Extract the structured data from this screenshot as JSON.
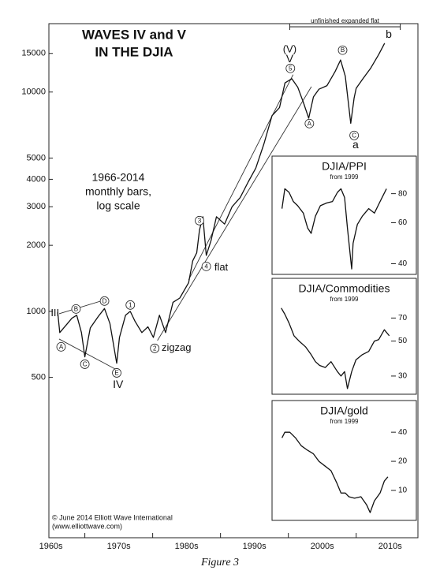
{
  "chart_data": [
    {
      "type": "line",
      "log_y": true,
      "title_lines": [
        "WAVES IV and V",
        "IN THE DJIA"
      ],
      "subtitle_lines": [
        "1966-2014",
        "monthly bars,",
        "log scale"
      ],
      "credit_lines": [
        "© June 2014 Elliott Wave International",
        "(www.elliottwave.com)"
      ],
      "color": "#111111",
      "xlim": [
        1964.7,
        2019.1
      ],
      "ylim": [
        100,
        20000
      ],
      "xticks": [
        1970,
        1980,
        1990,
        2000,
        2010
      ],
      "xtick_labels": [
        {
          "value": 1965,
          "label": "1960s"
        },
        {
          "value": 1975,
          "label": "1970s"
        },
        {
          "value": 1985,
          "label": "1980s"
        },
        {
          "value": 1995,
          "label": "1990s"
        },
        {
          "value": 2005,
          "label": "2000s"
        },
        {
          "value": 2015,
          "label": "2010s"
        }
      ],
      "yticks": [
        500,
        1000,
        2000,
        3000,
        4000,
        5000,
        10000,
        15000
      ],
      "x": [
        1966.0,
        1966.3,
        1967.3,
        1968.1,
        1968.8,
        1969.5,
        1970.0,
        1970.8,
        1972.0,
        1972.9,
        1973.7,
        1974.7,
        1975.1,
        1976.0,
        1976.7,
        1977.4,
        1978.4,
        1979.3,
        1980.1,
        1981.0,
        1981.9,
        1983.0,
        1984.0,
        1985.3,
        1985.9,
        1986.5,
        1986.9,
        1987.4,
        1987.9,
        1988.6,
        1989.4,
        1990.6,
        1991.7,
        1992.9,
        1994.1,
        1995.2,
        1996.4,
        1997.6,
        1998.7,
        1999.5,
        2000.5,
        2001.4,
        2002.2,
        2003.0,
        2003.7,
        2004.5,
        2005.7,
        2006.9,
        2007.7,
        2008.4,
        2009.2,
        2009.7,
        2010.0,
        2010.9,
        2012.1,
        2013.3,
        2014.2
      ],
      "values": [
        990,
        800,
        870,
        930,
        960,
        800,
        620,
        840,
        950,
        1030,
        880,
        580,
        760,
        960,
        1000,
        900,
        800,
        850,
        760,
        960,
        800,
        1100,
        1150,
        1350,
        1700,
        1850,
        2350,
        2700,
        1800,
        2100,
        2700,
        2500,
        3000,
        3300,
        3900,
        4500,
        5800,
        7800,
        8500,
        11000,
        11500,
        10500,
        9000,
        7600,
        9500,
        10300,
        10700,
        12400,
        14000,
        11800,
        7200,
        9400,
        10400,
        11400,
        12800,
        14800,
        16700
      ],
      "trendlines": [
        {
          "x": [
            1985.3,
            2000.7
          ],
          "y": [
            1392,
            12000
          ]
        },
        {
          "x": [
            1980.7,
            2003.4
          ],
          "y": [
            736,
            10580
          ]
        },
        {
          "x": [
            1966.2,
            1973.1
          ],
          "y": [
            975,
            1132
          ]
        },
        {
          "x": [
            1966.2,
            1974.9
          ],
          "y": [
            748,
            537
          ]
        }
      ],
      "annotations": [
        {
          "text": "III",
          "x": 1965.6,
          "y": 980
        },
        {
          "text": "A",
          "x": 1966.5,
          "y": 689,
          "circled": true
        },
        {
          "text": "B",
          "x": 1968.7,
          "y": 1025,
          "circled": true
        },
        {
          "text": "C",
          "x": 1970.0,
          "y": 574,
          "circled": true
        },
        {
          "text": "D",
          "x": 1972.9,
          "y": 1114,
          "circled": true
        },
        {
          "text": "E",
          "x": 1974.7,
          "y": 524,
          "circled": true
        },
        {
          "text": "IV",
          "x": 1974.9,
          "y": 463
        },
        {
          "text": "1",
          "x": 1976.7,
          "y": 1069,
          "circled": true
        },
        {
          "text": "2",
          "x": 1980.3,
          "y": 678,
          "circled": true
        },
        {
          "text": "zigzag",
          "x": 1983.5,
          "y": 683
        },
        {
          "text": "3",
          "x": 1986.9,
          "y": 2592,
          "circled": true
        },
        {
          "text": "4",
          "x": 1987.9,
          "y": 1603,
          "circled": true
        },
        {
          "text": "flat",
          "x": 1990.1,
          "y": 1590
        },
        {
          "text": "(V)",
          "x": 2000.2,
          "y": 15630
        },
        {
          "text": "V",
          "x": 2000.2,
          "y": 14160
        },
        {
          "text": "5",
          "x": 2000.3,
          "y": 12820,
          "circled": true
        },
        {
          "text": "A",
          "x": 2003.1,
          "y": 7180,
          "circled": true
        },
        {
          "text": "B",
          "x": 2008.0,
          "y": 15520,
          "circled": true
        },
        {
          "text": "C",
          "x": 2009.7,
          "y": 6340,
          "circled": true
        },
        {
          "text": "a",
          "x": 2009.9,
          "y": 5740
        },
        {
          "text": "b",
          "x": 2014.8,
          "y": 18320
        }
      ],
      "bracket": {
        "label": "unfinished expanded flat",
        "x": [
          2000.2,
          2016.5
        ]
      }
    },
    {
      "type": "line",
      "log_y": true,
      "title": "DJIA/PPI",
      "subtitle": "from 1999",
      "color": "#111111",
      "xlim": [
        1997.6,
        2017.9
      ],
      "ylim": [
        36,
        116
      ],
      "yticks": [
        80,
        60,
        40
      ],
      "x": [
        1999.0,
        1999.4,
        2000.0,
        2000.6,
        2001.2,
        2002.0,
        2002.6,
        2003.1,
        2003.7,
        2004.4,
        2005.3,
        2006.1,
        2006.8,
        2007.3,
        2007.8,
        2008.2,
        2008.8,
        2009.0,
        2009.6,
        2010.3,
        2011.2,
        2012.0,
        2012.8,
        2013.7
      ],
      "values": [
        69,
        84,
        81,
        74,
        71,
        66,
        57,
        54,
        64,
        71,
        73,
        74,
        81,
        84,
        77,
        57,
        38,
        49,
        59,
        64,
        69,
        66,
        74,
        84
      ]
    },
    {
      "type": "line",
      "log_y": true,
      "title": "DJIA/Commodities",
      "subtitle": "from 1999",
      "color": "#111111",
      "xlim": [
        1997.6,
        2017.9
      ],
      "ylim": [
        23,
        125
      ],
      "yticks": [
        70,
        50,
        30
      ],
      "x": [
        1998.9,
        1999.4,
        2000.0,
        2000.7,
        2001.4,
        2002.3,
        2003.1,
        2003.7,
        2004.3,
        2005.1,
        2005.9,
        2006.8,
        2007.3,
        2007.8,
        2008.2,
        2008.8,
        2009.4,
        2010.3,
        2011.2,
        2012.0,
        2012.6,
        2013.4,
        2014.1
      ],
      "values": [
        81,
        74,
        65,
        54,
        50,
        46,
        41,
        37,
        35,
        34,
        37,
        32,
        30,
        32,
        25,
        32,
        38,
        41,
        43,
        50,
        51,
        59,
        54
      ]
    },
    {
      "type": "line",
      "log_y": true,
      "title": "DJIA/gold",
      "subtitle": "from 1999",
      "color": "#111111",
      "xlim": [
        1997.6,
        2017.9
      ],
      "ylim": [
        4.9,
        85
      ],
      "yticks": [
        40,
        20,
        10
      ],
      "x": [
        1999.0,
        1999.4,
        2000.1,
        2000.9,
        2001.7,
        2002.6,
        2003.4,
        2004.2,
        2005.0,
        2005.9,
        2006.7,
        2007.3,
        2007.9,
        2008.4,
        2009.2,
        2010.1,
        2010.9,
        2011.4,
        2012.0,
        2012.8,
        2013.4,
        2013.9
      ],
      "values": [
        35,
        40,
        40,
        35,
        29,
        26,
        24,
        20,
        18,
        16,
        12,
        9.4,
        9.4,
        8.6,
        8.3,
        8.6,
        7.1,
        5.9,
        7.8,
        9.4,
        12.5,
        13.8
      ]
    }
  ],
  "caption": "Figure 3"
}
